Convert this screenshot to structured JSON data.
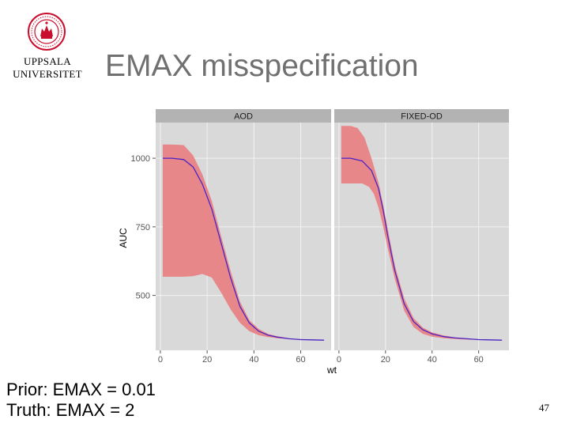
{
  "header": {
    "logo_text": "UPPSALA UNIVERSITET",
    "university_name": [
      "UPPSALA",
      "UNIVERSITET"
    ],
    "title": "EMAX misspecification"
  },
  "notes": [
    "Prior: EMAX = 0.01",
    "Truth: EMAX = 2"
  ],
  "page_number": "47",
  "colors": {
    "panel_bg": "#d9d9d9",
    "strip_bg": "#b3b3b3",
    "grid": "#f2f2f2",
    "ribbon": "#e8878a",
    "line": "#4b24c4",
    "title_text": "#707070",
    "logo": "#c8102e"
  },
  "chart_data": {
    "type": "area",
    "xlabel": "wt",
    "ylabel": "AUC",
    "xlim": [
      -2,
      73
    ],
    "ylim": [
      300,
      1130
    ],
    "x_ticks": [
      0,
      20,
      40,
      60
    ],
    "y_ticks": [
      500,
      750,
      1000
    ],
    "grid": true,
    "legend": "none",
    "panels": [
      {
        "facet": "AOD",
        "median": [
          [
            1,
            1000
          ],
          [
            5,
            1000
          ],
          [
            10,
            995
          ],
          [
            14,
            968
          ],
          [
            18,
            905
          ],
          [
            22,
            815
          ],
          [
            26,
            690
          ],
          [
            30,
            565
          ],
          [
            34,
            460
          ],
          [
            38,
            400
          ],
          [
            42,
            370
          ],
          [
            46,
            355
          ],
          [
            50,
            348
          ],
          [
            55,
            342
          ],
          [
            60,
            339
          ],
          [
            65,
            338
          ],
          [
            70,
            337
          ]
        ],
        "upper": [
          [
            1,
            1050
          ],
          [
            5,
            1050
          ],
          [
            10,
            1048
          ],
          [
            14,
            1010
          ],
          [
            18,
            940
          ],
          [
            22,
            845
          ],
          [
            26,
            715
          ],
          [
            30,
            590
          ],
          [
            34,
            478
          ],
          [
            38,
            410
          ],
          [
            42,
            378
          ],
          [
            46,
            360
          ],
          [
            50,
            351
          ],
          [
            55,
            344
          ],
          [
            60,
            340
          ],
          [
            65,
            338
          ],
          [
            70,
            337
          ]
        ],
        "lower": [
          [
            1,
            568
          ],
          [
            5,
            568
          ],
          [
            10,
            568
          ],
          [
            14,
            570
          ],
          [
            18,
            578
          ],
          [
            22,
            565
          ],
          [
            26,
            510
          ],
          [
            30,
            450
          ],
          [
            34,
            400
          ],
          [
            38,
            370
          ],
          [
            42,
            355
          ],
          [
            46,
            348
          ],
          [
            50,
            344
          ],
          [
            55,
            341
          ],
          [
            60,
            339
          ],
          [
            65,
            337
          ],
          [
            70,
            337
          ]
        ]
      },
      {
        "facet": "FIXED-OD",
        "median": [
          [
            1,
            1000
          ],
          [
            5,
            1000
          ],
          [
            10,
            990
          ],
          [
            14,
            955
          ],
          [
            17,
            890
          ],
          [
            19,
            810
          ],
          [
            21,
            715
          ],
          [
            24,
            590
          ],
          [
            28,
            470
          ],
          [
            32,
            405
          ],
          [
            36,
            375
          ],
          [
            40,
            360
          ],
          [
            45,
            350
          ],
          [
            50,
            345
          ],
          [
            55,
            342
          ],
          [
            60,
            339
          ],
          [
            65,
            338
          ],
          [
            70,
            337
          ]
        ],
        "upper": [
          [
            1,
            1118
          ],
          [
            5,
            1118
          ],
          [
            8,
            1110
          ],
          [
            11,
            1075
          ],
          [
            14,
            1000
          ],
          [
            17,
            910
          ],
          [
            19,
            830
          ],
          [
            21,
            740
          ],
          [
            24,
            610
          ],
          [
            28,
            490
          ],
          [
            32,
            418
          ],
          [
            36,
            383
          ],
          [
            40,
            365
          ],
          [
            45,
            354
          ],
          [
            50,
            347
          ],
          [
            55,
            343
          ],
          [
            60,
            340
          ],
          [
            65,
            338
          ],
          [
            70,
            337
          ]
        ],
        "lower": [
          [
            1,
            908
          ],
          [
            5,
            908
          ],
          [
            10,
            908
          ],
          [
            13,
            895
          ],
          [
            15,
            870
          ],
          [
            17,
            820
          ],
          [
            19,
            750
          ],
          [
            21,
            670
          ],
          [
            24,
            560
          ],
          [
            28,
            445
          ],
          [
            32,
            385
          ],
          [
            36,
            360
          ],
          [
            40,
            350
          ],
          [
            45,
            344
          ],
          [
            50,
            341
          ],
          [
            55,
            339
          ],
          [
            60,
            338
          ],
          [
            65,
            337
          ],
          [
            70,
            337
          ]
        ]
      }
    ]
  }
}
